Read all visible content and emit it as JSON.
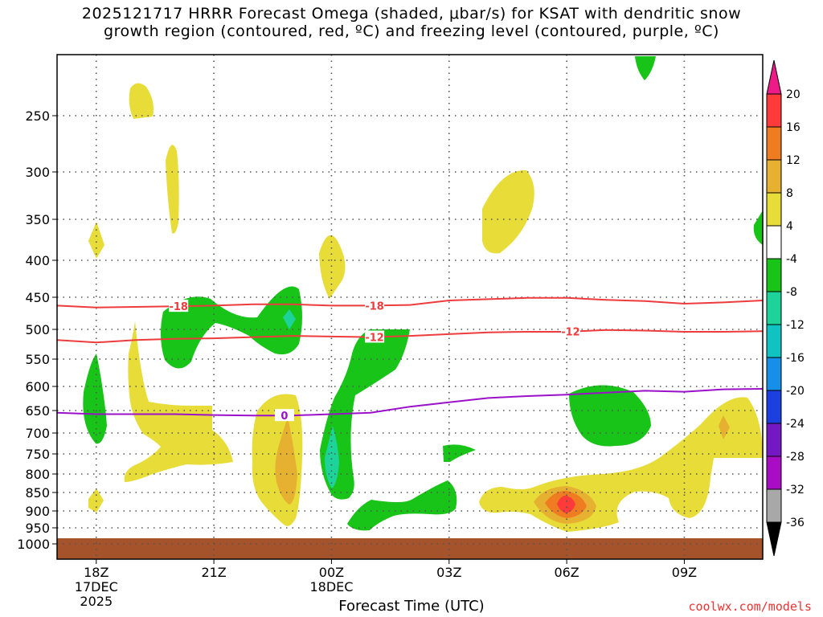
{
  "title": "2025121717 HRRR Forecast Omega (shaded, μbar/s) for KSAT with dendritic snow\ngrowth region (contoured, red, ºC) and freezing level (contoured, purple, ºC)",
  "credit": "coolwx.com/models",
  "chart_data": {
    "type": "heatmap",
    "xlabel": "Forecast Time (UTC)",
    "ylabel": "",
    "x_ticks": [
      {
        "label": "18Z",
        "sub": [
          "17DEC",
          "2025"
        ],
        "hour": 1
      },
      {
        "label": "21Z",
        "sub": [],
        "hour": 4
      },
      {
        "label": "00Z",
        "sub": [
          "18DEC"
        ],
        "hour": 7
      },
      {
        "label": "03Z",
        "sub": [],
        "hour": 10
      },
      {
        "label": "06Z",
        "sub": [],
        "hour": 13
      },
      {
        "label": "09Z",
        "sub": [],
        "hour": 16
      }
    ],
    "x_range": [
      0,
      18
    ],
    "y_ticks": [
      "250",
      "300",
      "350",
      "400",
      "450",
      "500",
      "550",
      "600",
      "650",
      "700",
      "750",
      "800",
      "850",
      "900",
      "950",
      "1000"
    ],
    "y_range_hPa": [
      200,
      1025
    ],
    "colorbar": {
      "labels": [
        "20",
        "16",
        "12",
        "8",
        "4",
        "-4",
        "-8",
        "-12",
        "-16",
        "-20",
        "-24",
        "-28",
        "-32",
        "-36"
      ],
      "colors": [
        "#ff3a3a",
        "#f07c22",
        "#e6b030",
        "#e8dc38",
        "#ffffff",
        "#17c417",
        "#1ed39a",
        "#10c3c3",
        "#178fe8",
        "#1c40e0",
        "#7418c4",
        "#a80cc4",
        "#a8a8a8"
      ]
    },
    "contours": [
      {
        "name": "dendritic snow growth -18C",
        "label": "-18",
        "color": "#ee3c3c",
        "points": [
          [
            0,
            463
          ],
          [
            1,
            466
          ],
          [
            2,
            465
          ],
          [
            3,
            464
          ],
          [
            4,
            463
          ],
          [
            5,
            461
          ],
          [
            6,
            461
          ],
          [
            7,
            463
          ],
          [
            8,
            463
          ],
          [
            9,
            462
          ],
          [
            10,
            455
          ],
          [
            11,
            453
          ],
          [
            12,
            451
          ],
          [
            13,
            451
          ],
          [
            14,
            454
          ],
          [
            15,
            456
          ],
          [
            16,
            460
          ],
          [
            17,
            458
          ],
          [
            18,
            455
          ]
        ]
      },
      {
        "name": "dendritic snow growth -12C",
        "label": "-12",
        "color": "#ee3c3c",
        "points": [
          [
            0,
            518
          ],
          [
            1,
            522
          ],
          [
            2,
            518
          ],
          [
            3,
            516
          ],
          [
            4,
            515
          ],
          [
            5,
            513
          ],
          [
            6,
            511
          ],
          [
            7,
            512
          ],
          [
            8,
            513
          ],
          [
            9,
            511
          ],
          [
            10,
            508
          ],
          [
            11,
            505
          ],
          [
            12,
            504
          ],
          [
            13,
            504
          ],
          [
            14,
            501
          ],
          [
            15,
            502
          ],
          [
            16,
            504
          ],
          [
            17,
            504
          ],
          [
            18,
            503
          ]
        ]
      },
      {
        "name": "freezing level",
        "label": "0",
        "color": "#9b11c9",
        "points": [
          [
            0,
            655
          ],
          [
            1,
            658
          ],
          [
            2,
            658
          ],
          [
            3,
            658
          ],
          [
            4,
            660
          ],
          [
            5,
            661
          ],
          [
            6,
            661
          ],
          [
            7,
            658
          ],
          [
            8,
            655
          ],
          [
            9,
            642
          ],
          [
            10,
            633
          ],
          [
            11,
            624
          ],
          [
            12,
            620
          ],
          [
            13,
            617
          ],
          [
            14,
            613
          ],
          [
            15,
            609
          ],
          [
            16,
            611
          ],
          [
            17,
            606
          ],
          [
            18,
            605
          ]
        ]
      }
    ]
  }
}
